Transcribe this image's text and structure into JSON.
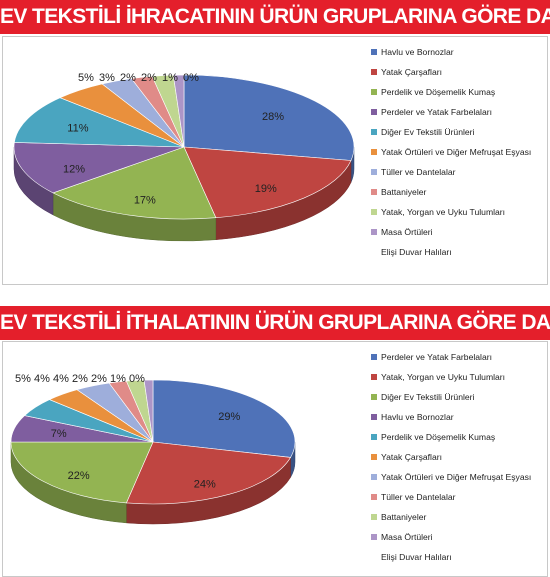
{
  "chart_data": [
    {
      "type": "pie",
      "title": "EV TEKSTİLİ İHRACATININ ÜRÜN GRUPLARINA GÖRE DAĞILIMI",
      "categories": [
        "Havlu ve Bornozlar",
        "Yatak Çarşafları",
        "Perdelik ve Döşemelik Kumaş",
        "Perdeler ve Yatak Farbelaları",
        "Diğer Ev Tekstili Ürünleri",
        "Yatak Örtüleri ve Diğer Mefruşat Eşyası",
        "Tüller ve Dantelalar",
        "Battaniyeler",
        "Yatak, Yorgan ve Uyku Tulumları",
        "Masa Örtüleri",
        "Elişi Duvar Halıları"
      ],
      "values": [
        28,
        19,
        17,
        12,
        11,
        5,
        3,
        2,
        2,
        1,
        0
      ],
      "value_labels": [
        "28%",
        "19%",
        "17%",
        "12%",
        "11%",
        "5%",
        "3%",
        "2%",
        "2%",
        "1%",
        "0%"
      ],
      "colors": [
        "#4f72b8",
        "#bf4541",
        "#93b452",
        "#7f5e9f",
        "#4aa5c0",
        "#e9903d",
        "#9eaedb",
        "#e08b88",
        "#bfd690",
        "#ac95c7",
        "#93ccdc"
      ],
      "legend_position": "right"
    },
    {
      "type": "pie",
      "title": "EV TEKSTİLİ İTHALATININ ÜRÜN GRUPLARINA GÖRE DAĞILIMI",
      "categories": [
        "Perdeler ve Yatak Farbelaları",
        "Yatak, Yorgan ve Uyku Tulumları",
        "Diğer Ev Tekstili Ürünleri",
        "Havlu ve Bornozlar",
        "Perdelik ve Döşemelik Kumaş",
        "Yatak Çarşafları",
        "Yatak Örtüleri ve Diğer Mefruşat Eşyası",
        "Tüller ve Dantelalar",
        "Battaniyeler",
        "Masa Örtüleri",
        "Elişi Duvar Halıları"
      ],
      "values": [
        29,
        24,
        22,
        7,
        5,
        4,
        4,
        2,
        2,
        1,
        0
      ],
      "value_labels": [
        "29%",
        "24%",
        "22%",
        "7%",
        "5%",
        "4%",
        "4%",
        "2%",
        "2%",
        "1%",
        "0%"
      ],
      "colors": [
        "#4f72b8",
        "#bf4541",
        "#93b452",
        "#7f5e9f",
        "#4aa5c0",
        "#e9903d",
        "#9eaedb",
        "#e08b88",
        "#bfd690",
        "#ac95c7",
        "#93ccdc"
      ],
      "legend_position": "right"
    }
  ]
}
